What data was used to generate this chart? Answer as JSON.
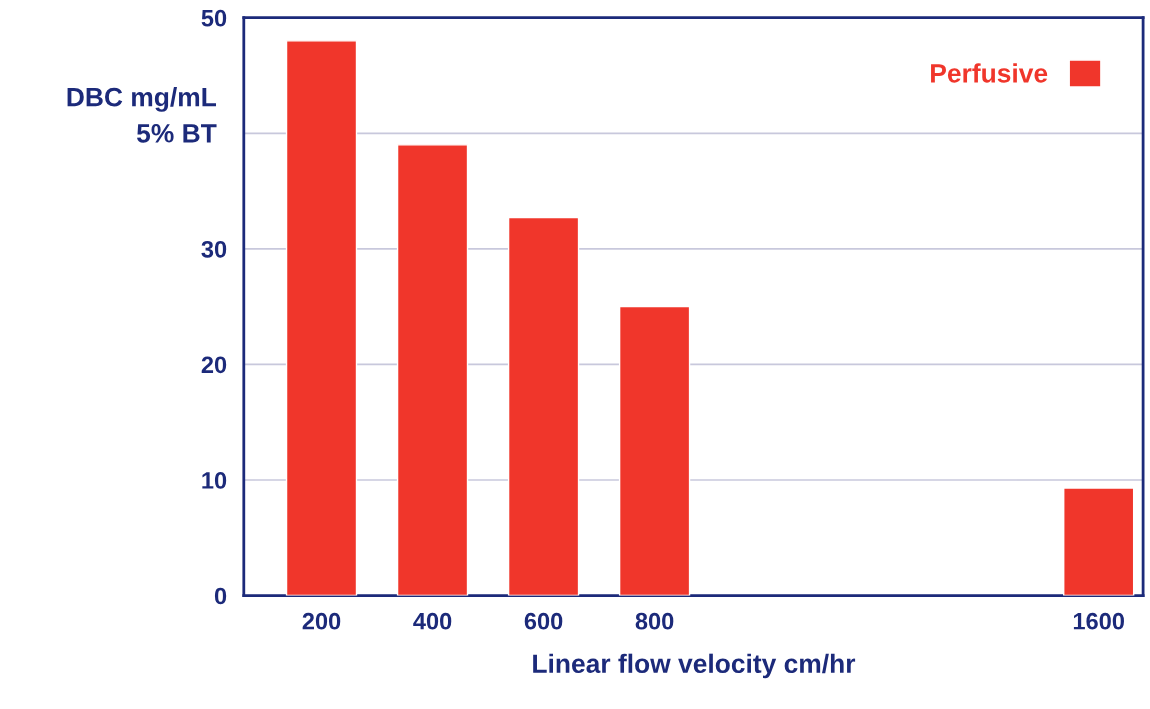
{
  "chart_data": {
    "type": "bar",
    "ylabel": "DBC mg/mL\n5% BT",
    "xlabel": "Linear flow velocity cm/hr",
    "x": [
      200,
      400,
      600,
      800,
      1600
    ],
    "series": [
      {
        "name": "Perfusive",
        "color": "#f0362b",
        "values": [
          48.0,
          39.0,
          32.7,
          25.0,
          9.3
        ]
      }
    ],
    "xlim": [
      60,
      1680
    ],
    "xticks": [
      200,
      400,
      600,
      800,
      1600
    ],
    "ylim": [
      0,
      50
    ],
    "yticks": [
      0,
      10,
      20,
      30,
      {
        "value": 40,
        "label": null
      },
      50
    ],
    "grid": "y",
    "legend": "top right"
  }
}
